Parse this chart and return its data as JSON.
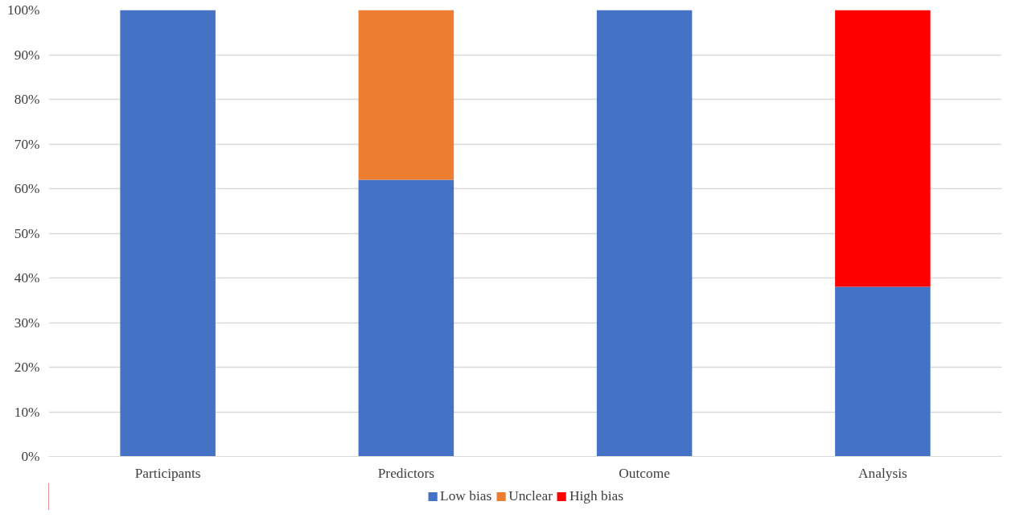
{
  "chart_data": {
    "type": "bar",
    "stacked": true,
    "categories": [
      "Participants",
      "Predictors",
      "Outcome",
      "Analysis"
    ],
    "series": [
      {
        "name": "Low bias",
        "color": "#4472c4",
        "values": [
          100,
          62,
          100,
          38
        ]
      },
      {
        "name": "Unclear",
        "color": "#ed7d31",
        "values": [
          0,
          38,
          0,
          0
        ]
      },
      {
        "name": "High bias",
        "color": "#ff0000",
        "values": [
          0,
          0,
          0,
          62
        ]
      }
    ],
    "ylim": [
      0,
      100
    ],
    "yticks": [
      {
        "value": 0,
        "label": "0%"
      },
      {
        "value": 10,
        "label": "10%"
      },
      {
        "value": 20,
        "label": "20%"
      },
      {
        "value": 30,
        "label": "30%"
      },
      {
        "value": 40,
        "label": "40%"
      },
      {
        "value": 50,
        "label": "50%"
      },
      {
        "value": 60,
        "label": "60%"
      },
      {
        "value": 70,
        "label": "70%"
      },
      {
        "value": 80,
        "label": "80%"
      },
      {
        "value": 90,
        "label": "90%"
      },
      {
        "value": 100,
        "label": "100%"
      }
    ],
    "grid": "y",
    "legend": "bottom"
  }
}
